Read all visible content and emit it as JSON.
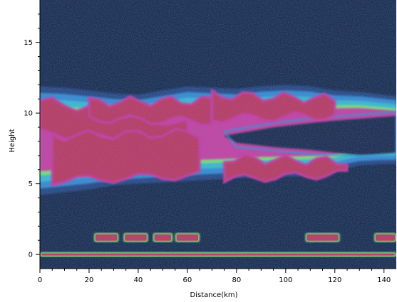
{
  "chart_data": {
    "type": "heatmap",
    "xlabel": "Distance(km)",
    "ylabel": "Height",
    "xlim": [
      0,
      145
    ],
    "ylim": [
      -1,
      18
    ],
    "xticks": [
      0,
      20,
      40,
      60,
      80,
      100,
      120,
      140
    ],
    "yticks": [
      0,
      5,
      10,
      15
    ],
    "colors": {
      "background": "#0b1733",
      "noise": "#1c3a78",
      "low": "#2f8fd8",
      "medium": "#30c8d0",
      "mid_high": "#8cf060",
      "high": "#e8d040",
      "very_high": "#e0289a",
      "peak": "#d02848"
    },
    "layers": [
      {
        "name": "upper",
        "top": [
          [
            0,
            11.9
          ],
          [
            10,
            11.8
          ],
          [
            20,
            11.6
          ],
          [
            30,
            11.4
          ],
          [
            40,
            11.3
          ],
          [
            50,
            11.6
          ],
          [
            60,
            11.9
          ],
          [
            70,
            11.8
          ],
          [
            80,
            11.7
          ],
          [
            90,
            11.9
          ],
          [
            100,
            12.0
          ],
          [
            110,
            11.9
          ],
          [
            120,
            11.6
          ],
          [
            130,
            11.5
          ],
          [
            140,
            11.3
          ],
          [
            145,
            11.2
          ]
        ],
        "bottom": [
          [
            0,
            4.2
          ],
          [
            10,
            4.4
          ],
          [
            20,
            4.6
          ],
          [
            30,
            4.9
          ],
          [
            40,
            5.0
          ],
          [
            50,
            5.1
          ],
          [
            60,
            5.2
          ],
          [
            70,
            5.3
          ],
          [
            80,
            5.4
          ],
          [
            90,
            5.5
          ],
          [
            100,
            5.5
          ],
          [
            110,
            5.6
          ],
          [
            120,
            5.8
          ],
          [
            125,
            6.1
          ],
          [
            130,
            6.3
          ],
          [
            140,
            6.4
          ],
          [
            145,
            6.4
          ]
        ],
        "cores": [
          {
            "x": [
              0,
              60
            ],
            "ytop": [
              10.9,
              9.2
            ],
            "ybot": [
              8.6,
              7.6
            ]
          },
          {
            "x": [
              20,
              70
            ],
            "ytop": [
              10.8,
              10.9
            ],
            "ybot": [
              9.6,
              9.4
            ]
          },
          {
            "x": [
              70,
              120
            ],
            "ytop": [
              11.3,
              11.0
            ],
            "ybot": [
              9.6,
              9.8
            ]
          },
          {
            "x": [
              5,
              65
            ],
            "ytop": [
              8.4,
              8.6
            ],
            "ybot": [
              5.2,
              5.6
            ]
          },
          {
            "x": [
              75,
              125
            ],
            "ytop": [
              6.8,
              6.6
            ],
            "ybot": [
              5.3,
              5.7
            ]
          }
        ]
      }
    ],
    "bands": [
      {
        "y": 1.2,
        "segments": [
          [
            22,
            32
          ],
          [
            34,
            44
          ],
          [
            46,
            54
          ],
          [
            55,
            65
          ],
          [
            108,
            122
          ],
          [
            136,
            145
          ]
        ]
      },
      {
        "y": 0.0,
        "segments": [
          [
            0,
            145
          ]
        ]
      }
    ]
  }
}
